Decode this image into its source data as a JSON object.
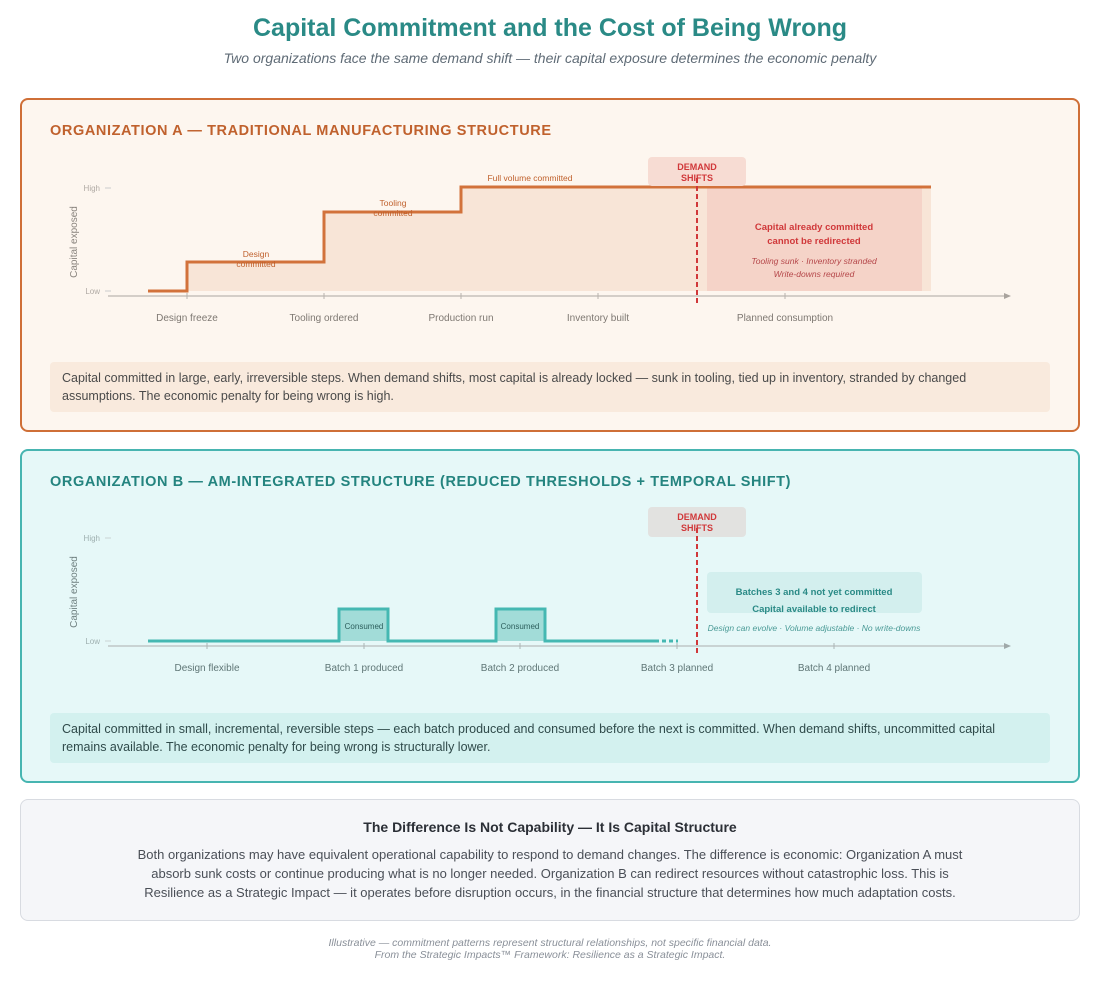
{
  "title": "Capital Commitment and the Cost of Being Wrong",
  "subtitle": "Two organizations face the same demand shift — their capital exposure determines the economic penalty",
  "orgA": {
    "heading": "ORGANIZATION A — TRADITIONAL MANUFACTURING STRUCTURE",
    "y_label": "Capital exposed",
    "y_high": "High",
    "y_low": "Low",
    "x_ticks": [
      "Design freeze",
      "Tooling ordered",
      "Production run",
      "Inventory built",
      "Planned consumption"
    ],
    "step_labels": {
      "design1": "Design",
      "design2": "committed",
      "tooling1": "Tooling",
      "tooling2": "committed",
      "full": "Full volume committed"
    },
    "demand1": "DEMAND",
    "demand2": "SHIFTS",
    "box_title1": "Capital already committed",
    "box_title2": "cannot be redirected",
    "box_sub1": "Tooling sunk · Inventory stranded",
    "box_sub2": "Write-downs required",
    "note": "Capital committed in large, early, irreversible steps. When demand shifts, most capital is already locked — sunk in tooling, tied up in inventory, stranded by changed assumptions. The economic penalty for being wrong is high."
  },
  "orgB": {
    "heading": "ORGANIZATION B — AM-INTEGRATED STRUCTURE (REDUCED THRESHOLDS + TEMPORAL SHIFT)",
    "y_label": "Capital exposed",
    "y_high": "High",
    "y_low": "Low",
    "x_ticks": [
      "Design flexible",
      "Batch 1 produced",
      "Batch 2 produced",
      "Batch 3 planned",
      "Batch 4 planned"
    ],
    "consumed": "Consumed",
    "demand1": "DEMAND",
    "demand2": "SHIFTS",
    "box_title1": "Batches 3 and 4 not yet committed",
    "box_title2": "Capital available to redirect",
    "box_sub": "Design can evolve · Volume adjustable · No write-downs",
    "note": "Capital committed in small, incremental, reversible steps — each batch produced and consumed before the next is committed. When demand shifts, uncommitted capital remains available. The economic penalty for being wrong is structurally lower."
  },
  "summary": {
    "heading": "The Difference Is Not Capability — It Is Capital Structure",
    "body": "Both organizations may have equivalent operational capability to respond to demand changes. The difference is economic: Organization A must absorb sunk costs or continue producing what is no longer needed. Organization B can redirect resources without catastrophic loss. This is Resilience as a Strategic Impact — it operates before disruption occurs, in the financial structure that determines how much adaptation costs."
  },
  "footer": {
    "line1": "Illustrative — commitment patterns represent structural relationships, not specific financial data.",
    "line2": "From the Strategic Impacts™ Framework: Resilience as a Strategic Impact."
  }
}
